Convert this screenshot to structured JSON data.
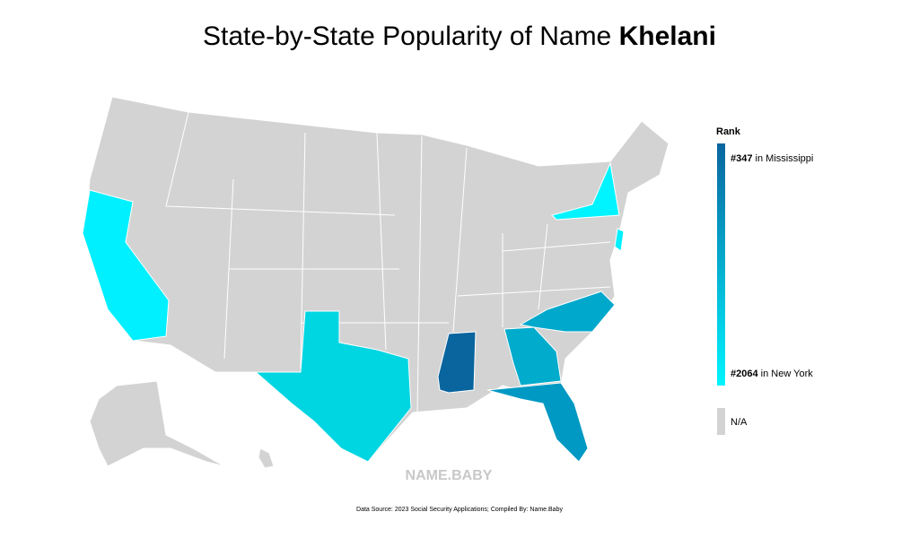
{
  "title": {
    "prefix": "State-by-State Popularity of Name",
    "name": "Khelani"
  },
  "legend": {
    "title": "Rank",
    "top": {
      "rank": "#347",
      "state": "in Mississippi"
    },
    "bottom": {
      "rank": "#2064",
      "state": "in New York"
    },
    "na": "N/A",
    "colors": {
      "high": "#0a659e",
      "low": "#00f4ff",
      "na": "#d3d3d3"
    }
  },
  "watermark": "NAME.BABY",
  "source": "Data Source: 2023 Social Security Applications; Compiled By: Name.Baby"
}
